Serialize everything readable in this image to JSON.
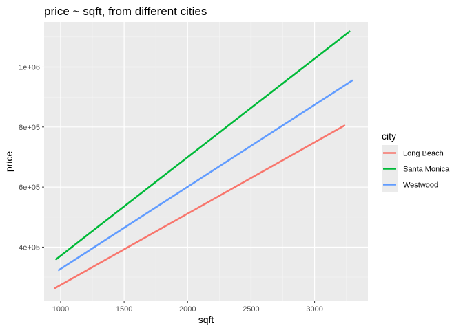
{
  "chart_data": {
    "type": "line",
    "title": "price ~ sqft, from different cities",
    "xlabel": "sqft",
    "ylabel": "price",
    "xlim": [
      870,
      3420
    ],
    "ylim": [
      220000,
      1150000
    ],
    "x_ticks": [
      1000,
      1500,
      2000,
      2500,
      3000
    ],
    "x_tick_labels": [
      "1000",
      "1500",
      "2000",
      "2500",
      "3000"
    ],
    "y_ticks": [
      400000,
      600000,
      800000,
      1000000
    ],
    "y_tick_labels": [
      "4e+05",
      "6e+05",
      "8e+05",
      "1e+06"
    ],
    "grid": true,
    "legend_title": "city",
    "legend_position": "right",
    "series": [
      {
        "name": "Long Beach",
        "color": "#F8766D",
        "x": [
          950,
          3240
        ],
        "y": [
          262000,
          806000
        ]
      },
      {
        "name": "Santa Monica",
        "color": "#00BA38",
        "x": [
          960,
          3280
        ],
        "y": [
          358000,
          1120000
        ]
      },
      {
        "name": "Westwood",
        "color": "#619CFF",
        "x": [
          980,
          3300
        ],
        "y": [
          322000,
          956000
        ]
      }
    ]
  }
}
